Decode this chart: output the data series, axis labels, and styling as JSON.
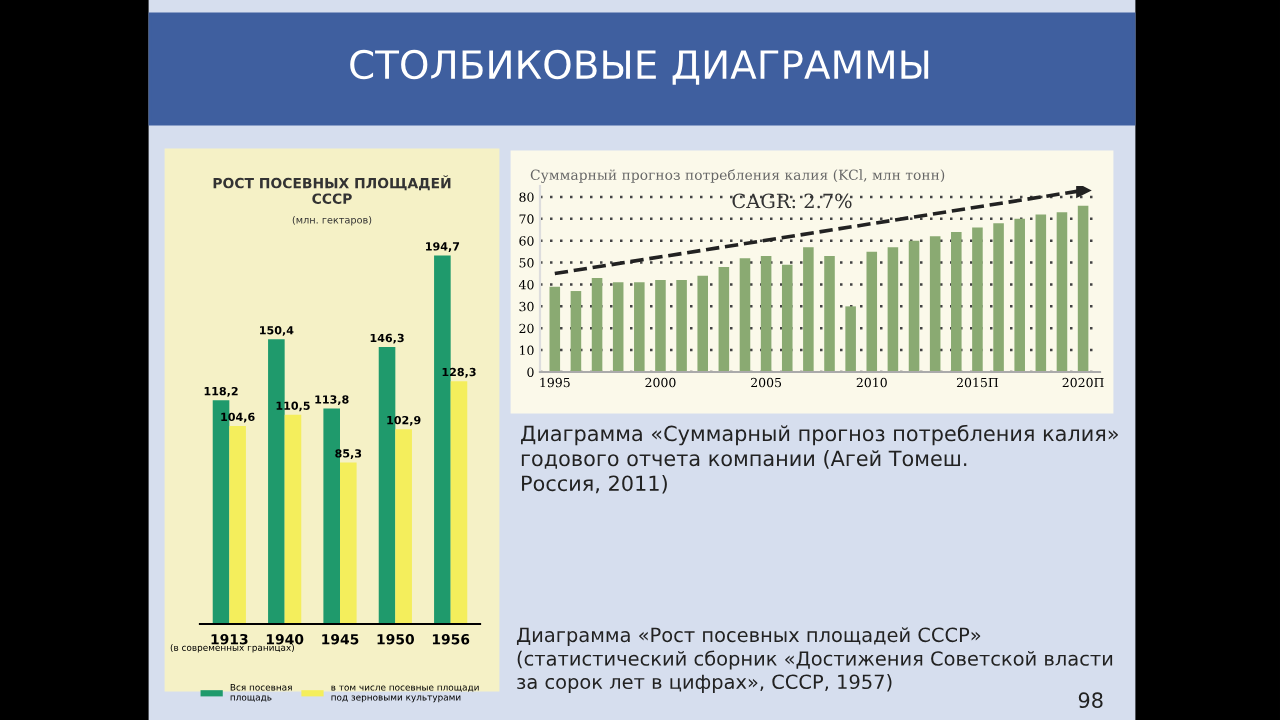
{
  "chart_data": [
    {
      "type": "bar",
      "title": "РОСТ ПОСЕВНЫХ ПЛОЩАДЕЙ\nСССР",
      "subtitle": "(млн. гектаров)",
      "categories": [
        "1913",
        "1940",
        "1945",
        "1950",
        "1956"
      ],
      "series": [
        {
          "name": "Вся посевная\nплощадь",
          "color": "#1f9a6c",
          "values": [
            118.2,
            150.4,
            113.8,
            146.3,
            194.7
          ],
          "value_labels": [
            "118,2",
            "150,4",
            "113,8",
            "146,3",
            "194,7"
          ]
        },
        {
          "name": "в том числе посевные площади\nпод зерновыми культурами",
          "color": "#f4ee5c",
          "values": [
            104.6,
            110.5,
            85.3,
            102.9,
            128.3
          ],
          "value_labels": [
            "104,6",
            "110,5",
            "85,3",
            "102,9",
            "128,3"
          ]
        }
      ],
      "legend": "bottom",
      "tick_labels": "x",
      "annotations": [
        "СТОЛБИКОВЫЕ ДИАГРАММЫ",
        "(в современных границах)",
        "Диаграмма «Рост посевных площадей СССР»\n(статистический сборник «Достижения Советской власти\nза сорок лет в цифрах», СССР, 1957)",
        "98"
      ]
    },
    {
      "type": "bar",
      "title": "Суммарный прогноз потребления калия (KCl, млн тонн)",
      "x": [
        1995,
        1996,
        1997,
        1998,
        1999,
        2000,
        2001,
        2002,
        2003,
        2004,
        2005,
        2006,
        2007,
        2008,
        2009,
        2010,
        2011,
        2012,
        2013,
        2014,
        2015,
        2016,
        2017,
        2018,
        2019,
        2020
      ],
      "series": [
        {
          "color": "#8aaa72",
          "values": [
            39,
            37,
            43,
            41,
            41,
            42,
            42,
            44,
            48,
            52,
            53,
            49,
            57,
            53,
            30,
            55,
            57,
            60,
            62,
            64,
            66,
            68,
            70,
            72,
            73,
            76
          ]
        },
        {
          "type": "line",
          "color": "#222222",
          "line_style": "dashed",
          "x": [
            1995,
            2020
          ],
          "values": [
            45,
            83
          ]
        }
      ],
      "xlim": [
        1994.3,
        2020.8
      ],
      "ylim": [
        0,
        85
      ],
      "yticks": [
        0,
        10,
        20,
        30,
        40,
        50,
        60,
        70,
        80
      ],
      "xticks": [
        1995,
        2000,
        2005,
        2010,
        {
          "value": 2015,
          "label": "2015П"
        },
        {
          "value": 2020,
          "label": "2020П"
        }
      ],
      "grid": "y",
      "annotations": [
        "CAGR: 2.7%",
        "Диаграмма «Суммарный прогноз потребления калия»\nгодового отчета компании (Агей Томеш.\nРоссия, 2011)"
      ]
    }
  ]
}
